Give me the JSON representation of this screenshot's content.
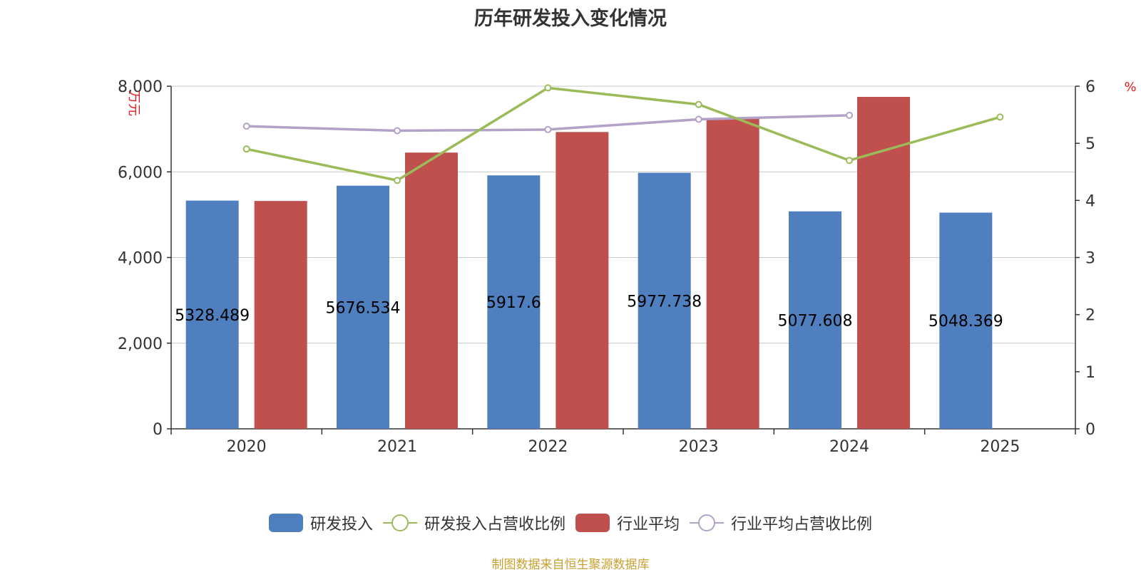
{
  "title": "历年研发投入变化情况",
  "source_note": "制图数据来自恒生聚源数据库",
  "left_axis_unit": "万元",
  "right_axis_unit": "%",
  "colors": {
    "rd_bar": "#4f7fbf",
    "industry_bar": "#c0504d",
    "rd_ratio_line": "#9bbb59",
    "industry_ratio_line": "#b3a2c7",
    "unit_label": "#e8191a",
    "grid": "#c8c8c8",
    "axis": "#333333",
    "source": "#c8a030"
  },
  "legend": [
    {
      "label": "研发投入",
      "kind": "bar",
      "color": "#4f7fbf"
    },
    {
      "label": "研发投入占营收比例",
      "kind": "line",
      "color": "#9bbb59"
    },
    {
      "label": "行业平均",
      "kind": "bar",
      "color": "#c0504d"
    },
    {
      "label": "行业平均占营收比例",
      "kind": "line",
      "color": "#b3a2c7"
    }
  ],
  "chart_data": {
    "type": "bar",
    "categories": [
      "2020",
      "2021",
      "2022",
      "2023",
      "2024",
      "2025"
    ],
    "left_axis": {
      "unit": "万元",
      "ylim": [
        0,
        8000
      ],
      "ticks": [
        "0",
        "2,000",
        "4,000",
        "6,000",
        "8,000"
      ],
      "tick_values": [
        0,
        2000,
        4000,
        6000,
        8000
      ]
    },
    "right_axis": {
      "unit": "%",
      "ylim": [
        0,
        6
      ],
      "ticks": [
        "0",
        "1",
        "2",
        "3",
        "4",
        "5",
        "6"
      ],
      "tick_values": [
        0,
        1,
        2,
        3,
        4,
        5,
        6
      ]
    },
    "series": [
      {
        "name": "研发投入",
        "type": "bar",
        "axis": "left",
        "values": [
          5328.489,
          5676.534,
          5917.6,
          5977.738,
          5077.608,
          5048.369
        ],
        "labels": [
          "5328.489",
          "5676.534",
          "5917.6",
          "5977.738",
          "5077.608",
          "5048.369"
        ]
      },
      {
        "name": "行业平均",
        "type": "bar",
        "axis": "left",
        "values": [
          5320,
          6450,
          6930,
          7250,
          7750,
          null
        ]
      },
      {
        "name": "研发投入占营收比例",
        "type": "line",
        "axis": "right",
        "values": [
          4.9,
          4.35,
          5.97,
          5.68,
          4.7,
          5.46
        ]
      },
      {
        "name": "行业平均占营收比例",
        "type": "line",
        "axis": "right",
        "values": [
          5.3,
          5.22,
          5.24,
          5.42,
          5.49,
          null
        ]
      }
    ],
    "grid": true,
    "legend_position": "bottom"
  }
}
